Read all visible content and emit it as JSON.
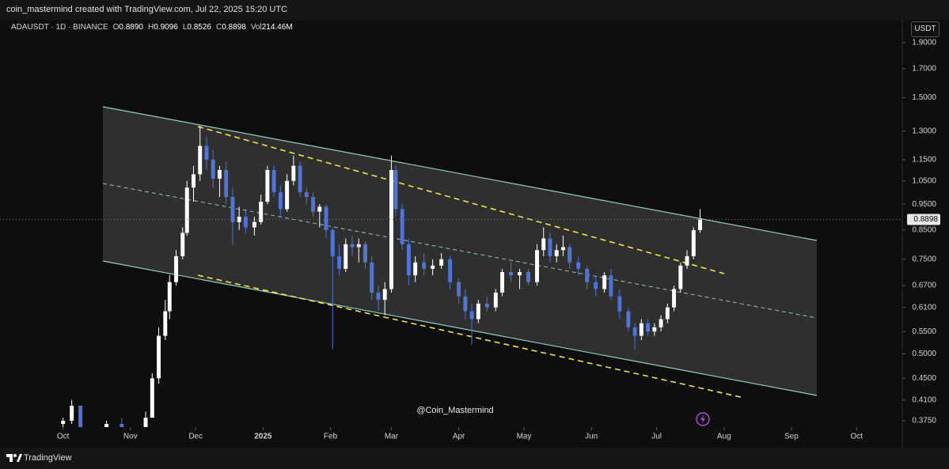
{
  "header": {
    "title": "coin_mastermind created with TradingView.com, Jul 22, 2025 15:20 UTC"
  },
  "footer": {
    "brand": "TradingView"
  },
  "chart_data": {
    "type": "candlestick",
    "legend": {
      "symbol": "ADAUSDT · 1D · BINANCE",
      "fields": [
        {
          "key": "O",
          "text": "0.8890"
        },
        {
          "key": "H",
          "text": "0.9096"
        },
        {
          "key": "L",
          "text": "0.8526"
        },
        {
          "key": "C",
          "text": "0.8898"
        },
        {
          "key": "Vol",
          "text": "214.46M"
        }
      ]
    },
    "currency": "USDT",
    "watermark": "@Coin_Mastermind",
    "log_scale": true,
    "up_color": "#ffffff",
    "down_color": "#4f74d6",
    "ylim": [
      0.365,
      2.096
    ],
    "yticks": [
      {
        "value": 1.9,
        "label": "1.9000"
      },
      {
        "value": 1.7,
        "label": "1.7000"
      },
      {
        "value": 1.5,
        "label": "1.5000"
      },
      {
        "value": 1.3,
        "label": "1.3000"
      },
      {
        "value": 1.15,
        "label": "1.1500"
      },
      {
        "value": 1.05,
        "label": "1.0500"
      },
      {
        "value": 0.95,
        "label": "0.9500"
      },
      {
        "value": 0.85,
        "label": "0.8500"
      },
      {
        "value": 0.75,
        "label": "0.7500"
      },
      {
        "value": 0.67,
        "label": "0.6700"
      },
      {
        "value": 0.61,
        "label": "0.6100"
      },
      {
        "value": 0.55,
        "label": "0.5500"
      },
      {
        "value": 0.5,
        "label": "0.5000"
      },
      {
        "value": 0.45,
        "label": "0.4500"
      },
      {
        "value": 0.41,
        "label": "0.4100"
      },
      {
        "value": 0.375,
        "label": "0.3750"
      }
    ],
    "last_price": 0.8898,
    "xlim": [
      -29,
      386
    ],
    "xticks": [
      {
        "value": 0,
        "label": "Oct"
      },
      {
        "value": 31,
        "label": "Nov"
      },
      {
        "value": 61,
        "label": "Dec"
      },
      {
        "value": 92,
        "label": "2025"
      },
      {
        "value": 123,
        "label": "Feb"
      },
      {
        "value": 151,
        "label": "Mar"
      },
      {
        "value": 182,
        "label": "Apr"
      },
      {
        "value": 212,
        "label": "May"
      },
      {
        "value": 243,
        "label": "Jun"
      },
      {
        "value": 273,
        "label": "Jul"
      },
      {
        "value": 304,
        "label": "Aug"
      },
      {
        "value": 335,
        "label": "Sep"
      },
      {
        "value": 365,
        "label": "Oct"
      }
    ],
    "x": [
      0,
      4,
      8,
      20,
      27,
      38,
      41,
      44,
      47,
      49,
      52,
      55,
      57,
      60,
      63,
      66,
      69,
      72,
      75,
      78,
      81,
      84,
      88,
      91,
      94,
      97,
      100,
      103,
      106,
      109,
      112,
      115,
      118,
      121,
      124,
      127,
      130,
      133,
      136,
      139,
      142,
      145,
      148,
      151,
      153,
      156,
      159,
      162,
      166,
      170,
      174,
      178,
      182,
      185,
      188,
      191,
      195,
      199,
      202,
      206,
      210,
      214,
      218,
      221,
      224,
      227,
      230,
      233,
      237,
      241,
      245,
      249,
      252,
      256,
      260,
      263,
      266,
      269,
      272,
      275,
      278,
      281,
      284,
      287,
      290,
      293
    ],
    "open": [
      0.37,
      0.375,
      0.4,
      0.355,
      0.37,
      0.33,
      0.38,
      0.45,
      0.54,
      0.6,
      0.68,
      0.76,
      0.84,
      1.02,
      1.08,
      1.22,
      1.15,
      1.06,
      1.1,
      0.98,
      0.88,
      0.9,
      0.86,
      0.88,
      0.96,
      1.1,
      1.0,
      0.93,
      1.05,
      1.12,
      1.0,
      0.98,
      0.92,
      0.94,
      0.85,
      0.76,
      0.72,
      0.8,
      0.79,
      0.8,
      0.74,
      0.65,
      0.63,
      0.66,
      1.1,
      0.93,
      0.8,
      0.7,
      0.74,
      0.72,
      0.73,
      0.75,
      0.68,
      0.64,
      0.6,
      0.58,
      0.62,
      0.61,
      0.65,
      0.71,
      0.7,
      0.71,
      0.68,
      0.78,
      0.82,
      0.76,
      0.78,
      0.79,
      0.74,
      0.72,
      0.68,
      0.66,
      0.7,
      0.64,
      0.6,
      0.56,
      0.54,
      0.57,
      0.55,
      0.56,
      0.58,
      0.61,
      0.66,
      0.73,
      0.76,
      0.85
    ],
    "high": [
      0.38,
      0.41,
      0.4,
      0.375,
      0.38,
      0.39,
      0.46,
      0.56,
      0.63,
      0.7,
      0.78,
      0.86,
      1.05,
      1.12,
      1.33,
      1.27,
      1.2,
      1.12,
      1.14,
      1.02,
      0.94,
      0.93,
      0.9,
      0.99,
      1.12,
      1.12,
      1.03,
      1.08,
      1.17,
      1.14,
      1.02,
      1.0,
      0.95,
      0.95,
      0.86,
      0.8,
      0.82,
      0.83,
      0.82,
      0.81,
      0.76,
      0.67,
      0.68,
      1.17,
      1.12,
      0.95,
      0.82,
      0.76,
      0.77,
      0.75,
      0.77,
      0.76,
      0.69,
      0.66,
      0.62,
      0.63,
      0.64,
      0.66,
      0.72,
      0.74,
      0.72,
      0.72,
      0.8,
      0.86,
      0.84,
      0.8,
      0.83,
      0.8,
      0.76,
      0.73,
      0.7,
      0.71,
      0.72,
      0.66,
      0.61,
      0.57,
      0.58,
      0.58,
      0.57,
      0.59,
      0.62,
      0.67,
      0.74,
      0.78,
      0.86,
      0.93
    ],
    "low": [
      0.36,
      0.37,
      0.36,
      0.35,
      0.36,
      0.33,
      0.38,
      0.44,
      0.53,
      0.58,
      0.67,
      0.75,
      0.83,
      0.96,
      1.05,
      1.1,
      1.02,
      0.98,
      0.95,
      0.8,
      0.85,
      0.84,
      0.83,
      0.87,
      0.95,
      0.98,
      0.9,
      0.92,
      1.03,
      0.98,
      0.95,
      0.9,
      0.86,
      0.82,
      0.51,
      0.7,
      0.71,
      0.76,
      0.74,
      0.72,
      0.63,
      0.6,
      0.59,
      0.65,
      0.9,
      0.78,
      0.67,
      0.68,
      0.7,
      0.7,
      0.72,
      0.66,
      0.62,
      0.58,
      0.52,
      0.57,
      0.6,
      0.6,
      0.64,
      0.68,
      0.66,
      0.67,
      0.67,
      0.76,
      0.74,
      0.74,
      0.76,
      0.72,
      0.7,
      0.66,
      0.64,
      0.65,
      0.63,
      0.58,
      0.55,
      0.51,
      0.53,
      0.54,
      0.54,
      0.55,
      0.57,
      0.6,
      0.65,
      0.72,
      0.75,
      0.84
    ],
    "close": [
      0.375,
      0.4,
      0.365,
      0.37,
      0.365,
      0.38,
      0.45,
      0.54,
      0.6,
      0.68,
      0.76,
      0.84,
      1.02,
      1.08,
      1.22,
      1.15,
      1.06,
      1.1,
      0.98,
      0.88,
      0.9,
      0.86,
      0.88,
      0.96,
      1.1,
      1.0,
      0.93,
      1.05,
      1.12,
      1.0,
      0.98,
      0.92,
      0.94,
      0.85,
      0.76,
      0.72,
      0.8,
      0.79,
      0.8,
      0.74,
      0.65,
      0.63,
      0.66,
      1.1,
      0.93,
      0.8,
      0.7,
      0.74,
      0.72,
      0.73,
      0.75,
      0.68,
      0.64,
      0.6,
      0.58,
      0.62,
      0.61,
      0.65,
      0.71,
      0.7,
      0.71,
      0.68,
      0.78,
      0.82,
      0.76,
      0.78,
      0.79,
      0.74,
      0.72,
      0.68,
      0.66,
      0.7,
      0.64,
      0.6,
      0.56,
      0.54,
      0.57,
      0.55,
      0.56,
      0.58,
      0.61,
      0.66,
      0.73,
      0.76,
      0.85,
      0.89
    ]
  }
}
